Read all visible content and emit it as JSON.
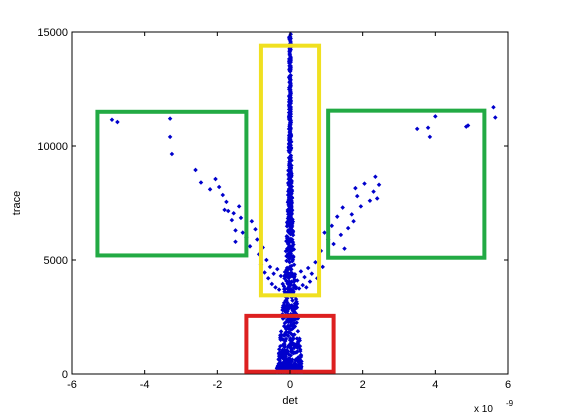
{
  "chart_data": {
    "type": "scatter",
    "title": "",
    "xlabel": "det",
    "ylabel": "trace",
    "x_exponent_base": "x 10",
    "x_exponent_power": "-9",
    "xlim": [
      -6,
      6
    ],
    "ylim": [
      0,
      15000
    ],
    "x_ticks": [
      -6,
      -4,
      -2,
      0,
      2,
      4,
      6
    ],
    "x_tick_labels": [
      "-6",
      "-4",
      "-2",
      "0",
      "2",
      "4",
      "6"
    ],
    "y_ticks": [
      0,
      5000,
      10000,
      15000
    ],
    "y_tick_labels": [
      "0",
      "5000",
      "10000",
      "15000"
    ],
    "grid": false,
    "marker_color": "#0000cc",
    "series": [
      {
        "points": [
          [
            -4.9,
            11150
          ],
          [
            -4.75,
            11050
          ],
          [
            -3.3,
            11200
          ],
          [
            -3.3,
            10400
          ],
          [
            -3.25,
            9650
          ],
          [
            -2.6,
            8950
          ],
          [
            -2.45,
            8400
          ],
          [
            -2.2,
            8100
          ],
          [
            -2.05,
            8550
          ],
          [
            -1.95,
            8200
          ],
          [
            -1.85,
            7850
          ],
          [
            -1.8,
            7200
          ],
          [
            -1.75,
            7550
          ],
          [
            -1.7,
            7150
          ],
          [
            -1.6,
            6750
          ],
          [
            -1.55,
            7050
          ],
          [
            -1.5,
            6300
          ],
          [
            -1.5,
            5800
          ],
          [
            -1.4,
            7350
          ],
          [
            -1.35,
            6850
          ],
          [
            -1.3,
            6200
          ],
          [
            -1.2,
            6000
          ],
          [
            -1.1,
            5600
          ],
          [
            -1.05,
            6700
          ],
          [
            -0.95,
            6350
          ],
          [
            -0.9,
            5900
          ],
          [
            -0.85,
            5250
          ],
          [
            -0.8,
            4800
          ],
          [
            -0.75,
            5550
          ],
          [
            -0.7,
            4450
          ],
          [
            -0.65,
            5000
          ],
          [
            -0.6,
            4200
          ],
          [
            -0.55,
            4700
          ],
          [
            -0.5,
            3950
          ],
          [
            -0.45,
            4400
          ],
          [
            -0.4,
            3800
          ],
          [
            -0.35,
            4600
          ],
          [
            -0.3,
            3700
          ],
          [
            -0.25,
            4300
          ],
          [
            -0.2,
            3950
          ],
          [
            0.2,
            4100
          ],
          [
            0.25,
            3750
          ],
          [
            0.3,
            4500
          ],
          [
            0.35,
            3900
          ],
          [
            0.4,
            4250
          ],
          [
            0.45,
            3800
          ],
          [
            0.5,
            4650
          ],
          [
            0.55,
            4050
          ],
          [
            0.6,
            4400
          ],
          [
            0.7,
            4900
          ],
          [
            0.75,
            4200
          ],
          [
            0.85,
            5400
          ],
          [
            0.9,
            4700
          ],
          [
            0.95,
            6200
          ],
          [
            1.05,
            5900
          ],
          [
            1.15,
            6500
          ],
          [
            1.2,
            5700
          ],
          [
            1.3,
            6900
          ],
          [
            1.4,
            6100
          ],
          [
            1.45,
            7300
          ],
          [
            1.5,
            5500
          ],
          [
            1.6,
            6400
          ],
          [
            1.7,
            7000
          ],
          [
            1.75,
            6700
          ],
          [
            1.8,
            8150
          ],
          [
            1.85,
            7800
          ],
          [
            1.95,
            7350
          ],
          [
            2.05,
            8350
          ],
          [
            2.2,
            7600
          ],
          [
            2.3,
            8000
          ],
          [
            2.35,
            8650
          ],
          [
            2.4,
            7700
          ],
          [
            2.45,
            8300
          ],
          [
            3.5,
            10750
          ],
          [
            3.8,
            10800
          ],
          [
            3.85,
            10400
          ],
          [
            4.0,
            11300
          ],
          [
            4.85,
            10850
          ],
          [
            4.9,
            10900
          ],
          [
            5.6,
            11700
          ],
          [
            5.65,
            11250
          ]
        ]
      }
    ],
    "dense_column": {
      "center_x": 0,
      "top_y": 14900,
      "bottom_y": 100,
      "half_width_at_bottom": 0.35,
      "half_width_at_top": 0.02
    },
    "highlight_boxes": [
      {
        "color": "#22aa44",
        "x0": -5.3,
        "x1": -1.2,
        "y0": 5200,
        "y1": 11500
      },
      {
        "color": "#22aa44",
        "x0": 1.05,
        "x1": 5.35,
        "y0": 5100,
        "y1": 11550
      },
      {
        "color": "#f0e020",
        "x0": -0.8,
        "x1": 0.8,
        "y0": 3450,
        "y1": 14400
      },
      {
        "color": "#dd2020",
        "x0": -1.2,
        "x1": 1.2,
        "y0": 100,
        "y1": 2550
      }
    ]
  }
}
